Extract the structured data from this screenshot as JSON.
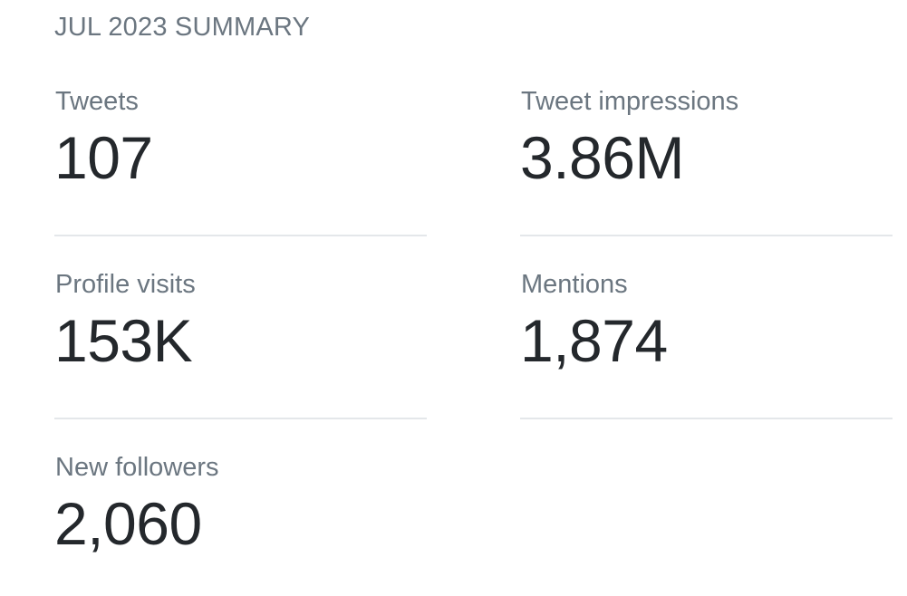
{
  "header": {
    "title": "JUL 2023 SUMMARY"
  },
  "stats": [
    {
      "label": "Tweets",
      "value": "107"
    },
    {
      "label": "Tweet impressions",
      "value": "3.86M"
    },
    {
      "label": "Profile visits",
      "value": "153K"
    },
    {
      "label": "Mentions",
      "value": "1,874"
    },
    {
      "label": "New followers",
      "value": "2,060"
    }
  ]
}
